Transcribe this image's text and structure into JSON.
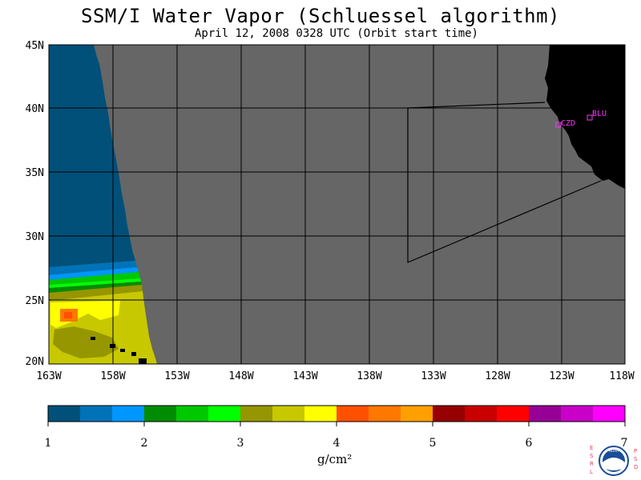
{
  "title": "SSM/I Water Vapor (Schluessel algorithm)",
  "subtitle": "April 12, 2008  0328 UTC  (Orbit start time)",
  "map": {
    "lat_labels": [
      "45N",
      "40N",
      "35N",
      "30N",
      "25N",
      "20N"
    ],
    "lon_labels": [
      "163W",
      "158W",
      "153W",
      "148W",
      "143W",
      "138W",
      "133W",
      "128W",
      "123W",
      "118W"
    ],
    "stations": [
      {
        "label": "CZD",
        "color": "#ff33ff"
      },
      {
        "label": "BLU",
        "color": "#ff33ff"
      }
    ],
    "colors": {
      "no_data": "#666666",
      "land": "#000000",
      "grid": "#000000"
    }
  },
  "colorbar": {
    "colors": [
      "#00507a",
      "#0073b8",
      "#0096ff",
      "#008c00",
      "#00c800",
      "#00ff00",
      "#969600",
      "#c8c800",
      "#ffff00",
      "#ff5000",
      "#ff7800",
      "#ffa000",
      "#960000",
      "#c80000",
      "#ff0000",
      "#960096",
      "#c800c8",
      "#ff00ff"
    ],
    "tick_labels": [
      "1",
      "2",
      "3",
      "4",
      "5",
      "6",
      "7"
    ],
    "units": "g/cm²"
  },
  "logo": {
    "left_letters": "ESRL",
    "right_letters": "PSD",
    "center_text": "NOAA"
  }
}
